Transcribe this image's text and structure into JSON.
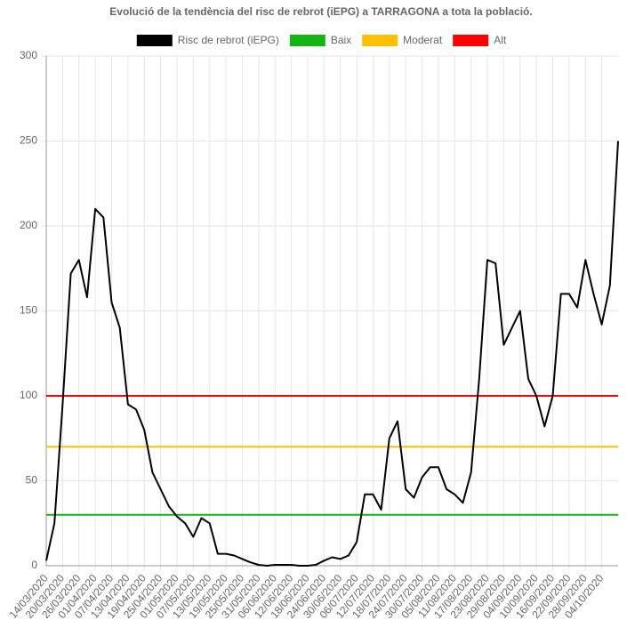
{
  "chart_data": {
    "type": "line",
    "title": "Evolució de la tendència del risc de rebrot (iEPG) a TARRAGONA a tota la població.",
    "categories": [
      "14/03/2020",
      null,
      "20/03/2020",
      null,
      "26/03/2020",
      null,
      "01/04/2020",
      null,
      "07/04/2020",
      null,
      "13/04/2020",
      null,
      "19/04/2020",
      null,
      "25/04/2020",
      null,
      "01/05/2020",
      null,
      "07/05/2020",
      null,
      "13/05/2020",
      null,
      "19/05/2020",
      null,
      "25/05/2020",
      null,
      "31/05/2020",
      null,
      "06/06/2020",
      null,
      "12/06/2020",
      null,
      "18/06/2020",
      null,
      "24/06/2020",
      null,
      "30/06/2020",
      null,
      "06/07/2020",
      null,
      "12/07/2020",
      null,
      "18/07/2020",
      null,
      "24/07/2020",
      null,
      "30/07/2020",
      null,
      "05/08/2020",
      null,
      "11/08/2020",
      null,
      "17/08/2020",
      null,
      "23/08/2020",
      null,
      "29/08/2020",
      null,
      "04/09/2020",
      null,
      "10/09/2020",
      null,
      "16/09/2020",
      null,
      "22/09/2020",
      null,
      "28/09/2020",
      null,
      "04/10/2020",
      null,
      null
    ],
    "series": [
      {
        "name": "Risc de rebrot (iEPG)",
        "color": "#000000",
        "values": [
          3,
          25,
          95,
          172,
          180,
          158,
          210,
          205,
          155,
          140,
          95,
          92,
          80,
          55,
          45,
          35,
          29,
          25,
          17,
          28,
          25,
          7,
          7,
          6,
          4,
          2,
          0.5,
          0,
          0.5,
          0.5,
          0.5,
          0,
          0,
          0.5,
          3,
          5,
          4,
          6,
          14,
          42,
          42,
          33,
          75,
          85,
          45,
          40,
          52,
          58,
          58,
          45,
          42,
          37,
          55,
          110,
          180,
          178,
          130,
          140,
          150,
          110,
          100,
          82,
          100,
          160,
          160,
          152,
          180,
          160,
          142,
          165,
          250
        ]
      },
      {
        "name": "Baix",
        "color": "#14b414",
        "values": [
          30,
          30,
          30,
          30,
          30,
          30,
          30,
          30,
          30,
          30,
          30,
          30,
          30,
          30,
          30,
          30,
          30,
          30,
          30,
          30,
          30,
          30,
          30,
          30,
          30,
          30,
          30,
          30,
          30,
          30,
          30,
          30,
          30,
          30,
          30,
          30,
          30,
          30,
          30,
          30,
          30,
          30,
          30,
          30,
          30,
          30,
          30,
          30,
          30,
          30,
          30,
          30,
          30,
          30,
          30,
          30,
          30,
          30,
          30,
          30,
          30,
          30,
          30,
          30,
          30,
          30,
          30,
          30,
          30,
          30,
          30
        ]
      },
      {
        "name": "Moderat",
        "color": "#ffc000",
        "values": [
          70,
          70,
          70,
          70,
          70,
          70,
          70,
          70,
          70,
          70,
          70,
          70,
          70,
          70,
          70,
          70,
          70,
          70,
          70,
          70,
          70,
          70,
          70,
          70,
          70,
          70,
          70,
          70,
          70,
          70,
          70,
          70,
          70,
          70,
          70,
          70,
          70,
          70,
          70,
          70,
          70,
          70,
          70,
          70,
          70,
          70,
          70,
          70,
          70,
          70,
          70,
          70,
          70,
          70,
          70,
          70,
          70,
          70,
          70,
          70,
          70,
          70,
          70,
          70,
          70,
          70,
          70,
          70,
          70,
          70,
          70
        ]
      },
      {
        "name": "Alt",
        "color": "#ff0000",
        "values": [
          100,
          100,
          100,
          100,
          100,
          100,
          100,
          100,
          100,
          100,
          100,
          100,
          100,
          100,
          100,
          100,
          100,
          100,
          100,
          100,
          100,
          100,
          100,
          100,
          100,
          100,
          100,
          100,
          100,
          100,
          100,
          100,
          100,
          100,
          100,
          100,
          100,
          100,
          100,
          100,
          100,
          100,
          100,
          100,
          100,
          100,
          100,
          100,
          100,
          100,
          100,
          100,
          100,
          100,
          100,
          100,
          100,
          100,
          100,
          100,
          100,
          100,
          100,
          100,
          100,
          100,
          100,
          100,
          100,
          100,
          100
        ]
      }
    ],
    "ylim": [
      0,
      300
    ],
    "yticks": [
      0,
      50,
      100,
      150,
      200,
      250,
      300
    ],
    "grid": true
  }
}
